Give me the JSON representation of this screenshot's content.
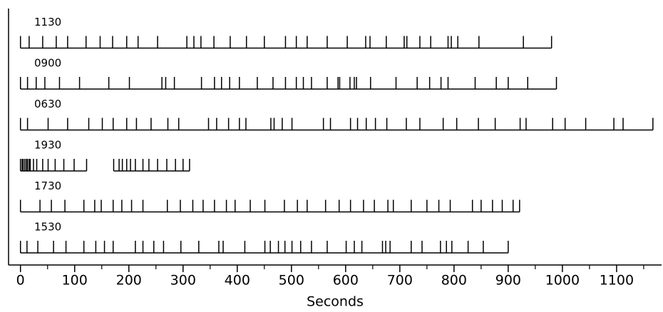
{
  "chart_data": {
    "type": "eventplot",
    "x_label": "Seconds",
    "xlim": [
      -22,
      1183
    ],
    "xticks": [
      0,
      100,
      200,
      300,
      400,
      500,
      600,
      700,
      800,
      900,
      1000,
      1100
    ],
    "xminorticks": [
      50,
      150,
      250,
      350,
      450,
      550,
      650,
      750,
      850,
      950,
      1050,
      1150
    ],
    "color": "#000000",
    "series": [
      {
        "name": "1130",
        "values": [
          0,
          16,
          41,
          66,
          87,
          121,
          147,
          170,
          196,
          217,
          253,
          307,
          320,
          333,
          357,
          387,
          417,
          450,
          489,
          509,
          529,
          566,
          603,
          637,
          645,
          675,
          708,
          713,
          737,
          757,
          789,
          795,
          807,
          846,
          928,
          980
        ]
      },
      {
        "name": "0900",
        "values": [
          0,
          13,
          29,
          45,
          72,
          109,
          163,
          201,
          261,
          268,
          284,
          334,
          358,
          371,
          386,
          404,
          437,
          466,
          489,
          509,
          522,
          537,
          566,
          586,
          589,
          608,
          616,
          620,
          646,
          693,
          732,
          755,
          776,
          789,
          839,
          878,
          900,
          936,
          989
        ]
      },
      {
        "name": "0630",
        "values": [
          0,
          13,
          51,
          87,
          126,
          151,
          171,
          196,
          214,
          241,
          272,
          292,
          347,
          362,
          384,
          404,
          416,
          462,
          468,
          483,
          501,
          559,
          572,
          609,
          622,
          638,
          655,
          676,
          712,
          737,
          780,
          805,
          845,
          876,
          922,
          933,
          982,
          1005,
          1043,
          1095,
          1112,
          1167
        ]
      },
      {
        "name": "1930",
        "values": [
          0,
          3,
          5,
          8,
          11,
          13,
          16,
          18,
          24,
          30,
          41,
          51,
          64,
          80,
          99,
          122,
          null,
          172,
          182,
          188,
          196,
          203,
          212,
          226,
          237,
          253,
          270,
          286,
          300,
          312
        ]
      },
      {
        "name": "1730",
        "values": [
          0,
          36,
          57,
          82,
          117,
          137,
          149,
          171,
          187,
          205,
          226,
          271,
          295,
          318,
          337,
          358,
          380,
          396,
          424,
          451,
          487,
          511,
          529,
          563,
          588,
          609,
          633,
          653,
          678,
          688,
          721,
          750,
          772,
          793,
          834,
          850,
          871,
          889,
          909,
          921
        ]
      },
      {
        "name": "1530",
        "values": [
          0,
          12,
          32,
          61,
          84,
          117,
          139,
          155,
          171,
          212,
          226,
          246,
          264,
          296,
          329,
          366,
          374,
          414,
          451,
          461,
          476,
          488,
          501,
          517,
          537,
          566,
          601,
          616,
          630,
          668,
          674,
          682,
          721,
          741,
          775,
          786,
          796,
          826,
          854,
          900
        ]
      }
    ]
  }
}
